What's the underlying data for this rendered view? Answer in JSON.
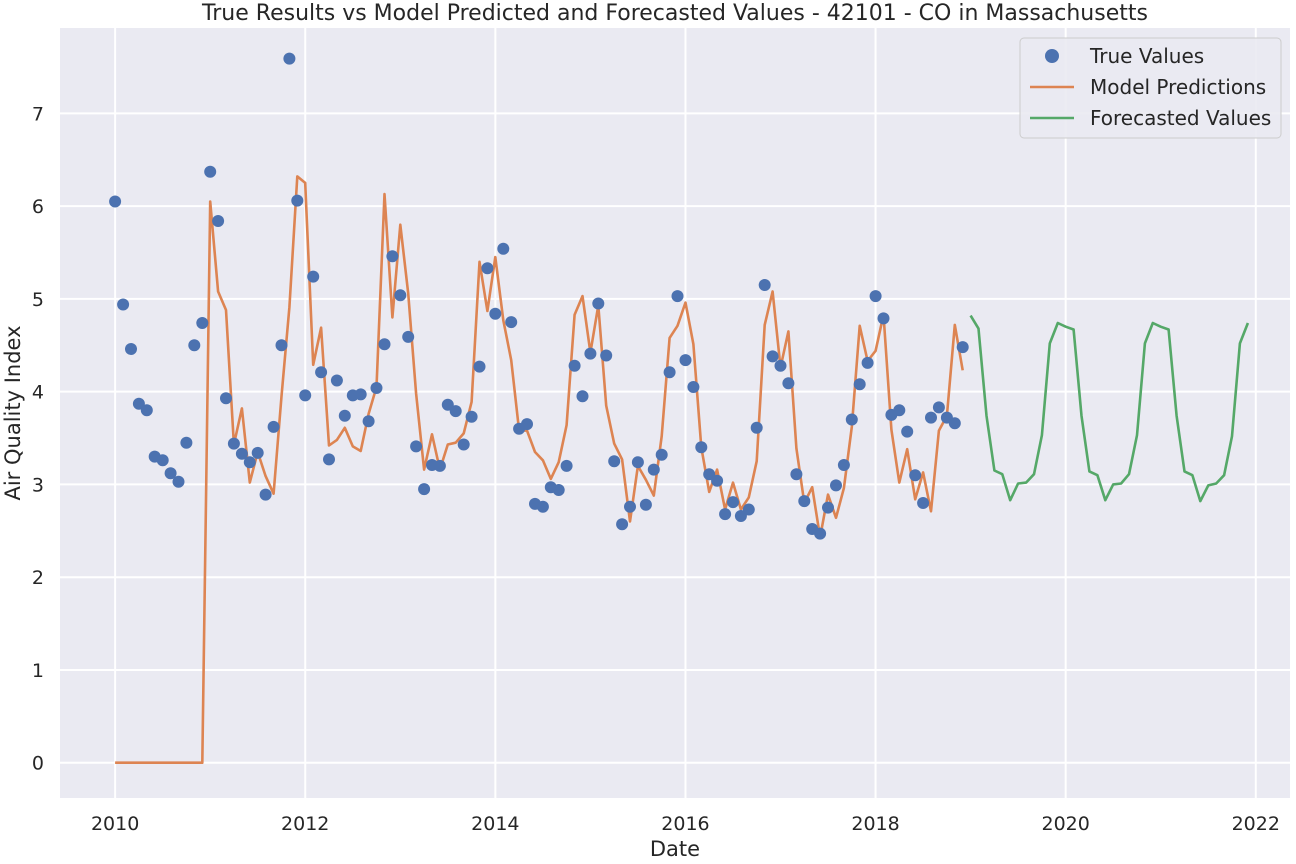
{
  "chart_data": {
    "type": "line",
    "title": "True Results vs Model Predicted and Forecasted Values - 42101 - CO in Massachusetts",
    "xlabel": "Date",
    "ylabel": "Air Quality Index",
    "xlim": [
      2009.42,
      2022.36
    ],
    "ylim": [
      -0.38,
      7.92
    ],
    "x_ticks": [
      2010,
      2012,
      2014,
      2016,
      2018,
      2020,
      2022
    ],
    "x_tick_labels": [
      "2010",
      "2012",
      "2014",
      "2016",
      "2018",
      "2020",
      "2022"
    ],
    "y_ticks": [
      0,
      1,
      2,
      3,
      4,
      5,
      6,
      7
    ],
    "y_tick_labels": [
      "0",
      "1",
      "2",
      "3",
      "4",
      "5",
      "6",
      "7"
    ],
    "grid": true,
    "legend_position": "top-right",
    "x_start_year": 2010,
    "series": [
      {
        "name": "True Values",
        "kind": "scatter",
        "color": "#4c72b0",
        "start_index": 0,
        "values": [
          6.05,
          4.94,
          4.46,
          3.87,
          3.8,
          3.3,
          3.26,
          3.12,
          3.03,
          3.45,
          4.5,
          4.74,
          6.37,
          5.84,
          3.93,
          3.44,
          3.33,
          3.24,
          3.34,
          2.89,
          3.62,
          4.5,
          7.59,
          6.06,
          3.96,
          5.24,
          4.21,
          3.27,
          4.12,
          3.74,
          3.96,
          3.97,
          3.68,
          4.04,
          4.51,
          5.46,
          5.04,
          4.59,
          3.41,
          2.95,
          3.21,
          3.2,
          3.86,
          3.79,
          3.43,
          3.73,
          4.27,
          5.33,
          4.84,
          5.54,
          4.75,
          3.6,
          3.65,
          2.79,
          2.76,
          2.97,
          2.94,
          3.2,
          4.28,
          3.95,
          4.41,
          4.95,
          4.39,
          3.25,
          2.57,
          2.76,
          3.24,
          2.78,
          3.16,
          3.32,
          4.21,
          5.03,
          4.34,
          4.05,
          3.4,
          3.11,
          3.04,
          2.68,
          2.81,
          2.66,
          2.73,
          3.61,
          5.15,
          4.38,
          4.28,
          4.09,
          3.11,
          2.82,
          2.52,
          2.47,
          2.75,
          2.99,
          3.21,
          3.7,
          4.08,
          4.31,
          5.03,
          4.79,
          3.75,
          3.8,
          3.57,
          3.1,
          2.8,
          3.72,
          3.83,
          3.72,
          3.66,
          4.48
        ]
      },
      {
        "name": "Model Predictions",
        "kind": "line",
        "color": "#dd8452",
        "start_index": 0,
        "values": [
          0,
          0,
          0,
          0,
          0,
          0,
          0,
          0,
          0,
          0,
          0,
          0,
          6.05,
          5.08,
          4.88,
          3.43,
          3.82,
          3.02,
          3.35,
          3.09,
          2.9,
          3.95,
          4.91,
          6.32,
          6.25,
          4.29,
          4.69,
          3.42,
          3.48,
          3.61,
          3.41,
          3.36,
          3.76,
          4.05,
          6.13,
          4.8,
          5.8,
          5.06,
          3.98,
          3.16,
          3.54,
          3.16,
          3.43,
          3.45,
          3.55,
          3.89,
          5.4,
          4.87,
          5.45,
          4.77,
          4.34,
          3.58,
          3.58,
          3.35,
          3.26,
          3.06,
          3.24,
          3.64,
          4.83,
          5.03,
          4.42,
          4.93,
          3.85,
          3.44,
          3.27,
          2.6,
          3.2,
          3.05,
          2.88,
          3.52,
          4.58,
          4.71,
          4.96,
          4.51,
          3.4,
          2.92,
          3.16,
          2.73,
          3.02,
          2.73,
          2.86,
          3.25,
          4.72,
          5.08,
          4.26,
          4.65,
          3.39,
          2.8,
          2.97,
          2.43,
          2.89,
          2.64,
          2.96,
          3.62,
          4.71,
          4.33,
          4.44,
          4.83,
          3.59,
          3.02,
          3.38,
          2.84,
          3.13,
          2.71,
          3.58,
          3.74,
          4.72,
          4.23
        ]
      },
      {
        "name": "Forecasted Values",
        "kind": "line",
        "color": "#55a868",
        "start_index": 108,
        "values": [
          4.82,
          4.68,
          3.74,
          3.15,
          3.11,
          2.83,
          3.01,
          3.02,
          3.11,
          3.53,
          4.52,
          4.74,
          4.7,
          4.67,
          3.74,
          3.14,
          3.1,
          2.83,
          3.0,
          3.01,
          3.11,
          3.53,
          4.52,
          4.74,
          4.7,
          4.67,
          3.74,
          3.14,
          3.1,
          2.82,
          2.99,
          3.01,
          3.1,
          3.52,
          4.52,
          4.74
        ]
      }
    ]
  }
}
